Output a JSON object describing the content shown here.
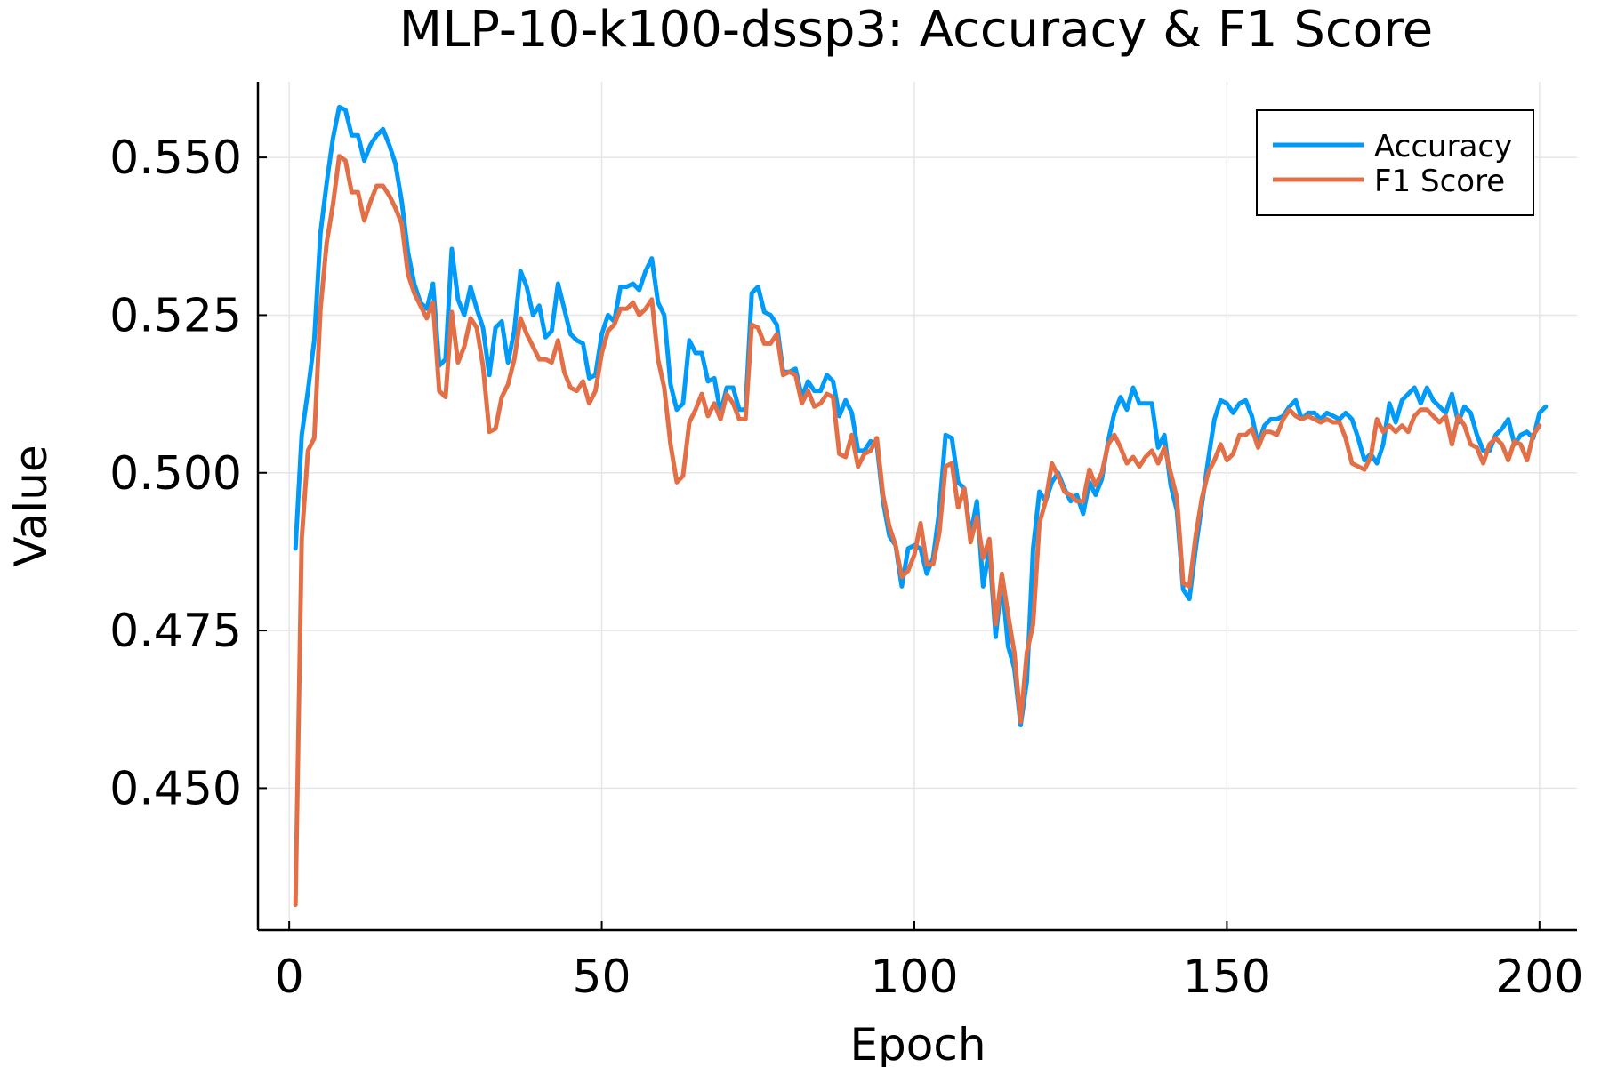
{
  "chart_data": {
    "type": "line",
    "title": "MLP-10-k100-dssp3: Accuracy & F1 Score",
    "xlabel": "Epoch",
    "ylabel": "Value",
    "xlim": [
      -5,
      206
    ],
    "ylim": [
      0.4275,
      0.562
    ],
    "xticks": [
      0,
      50,
      100,
      150,
      200
    ],
    "yticks": [
      0.45,
      0.475,
      0.5,
      0.525,
      0.55
    ],
    "xtick_labels": [
      "0",
      "50",
      "100",
      "150",
      "200"
    ],
    "ytick_labels": [
      "0.450",
      "0.475",
      "0.500",
      "0.525",
      "0.550"
    ],
    "grid": true,
    "legend_position": "top-right",
    "series": [
      {
        "name": "Accuracy",
        "color": "#009af9",
        "values": [
          0.488,
          0.506,
          0.513,
          0.521,
          0.538,
          0.546,
          0.553,
          0.558,
          0.5575,
          0.5535,
          0.5535,
          0.5495,
          0.552,
          0.5535,
          0.5545,
          0.552,
          0.549,
          0.543,
          0.535,
          0.53,
          0.527,
          0.526,
          0.53,
          0.517,
          0.518,
          0.5355,
          0.5275,
          0.525,
          0.5295,
          0.526,
          0.523,
          0.5155,
          0.523,
          0.524,
          0.5175,
          0.5225,
          0.532,
          0.5295,
          0.525,
          0.5265,
          0.5215,
          0.5225,
          0.53,
          0.526,
          0.522,
          0.521,
          0.5205,
          0.515,
          0.5155,
          0.522,
          0.525,
          0.524,
          0.5295,
          0.5295,
          0.53,
          0.529,
          0.532,
          0.534,
          0.527,
          0.525,
          0.514,
          0.51,
          0.511,
          0.521,
          0.519,
          0.519,
          0.5145,
          0.515,
          0.5095,
          0.5135,
          0.5135,
          0.51,
          0.51,
          0.5285,
          0.5295,
          0.5255,
          0.525,
          0.5235,
          0.516,
          0.516,
          0.5165,
          0.512,
          0.5145,
          0.513,
          0.513,
          0.5155,
          0.5145,
          0.509,
          0.5115,
          0.5095,
          0.5035,
          0.5035,
          0.505,
          0.5045,
          0.4955,
          0.49,
          0.4885,
          0.482,
          0.488,
          0.4885,
          0.488,
          0.484,
          0.4865,
          0.494,
          0.506,
          0.5055,
          0.4985,
          0.4975,
          0.49,
          0.4955,
          0.482,
          0.488,
          0.474,
          0.483,
          0.4725,
          0.469,
          0.46,
          0.467,
          0.488,
          0.497,
          0.4955,
          0.4985,
          0.5,
          0.4975,
          0.4955,
          0.4965,
          0.4935,
          0.4985,
          0.4965,
          0.499,
          0.505,
          0.5095,
          0.512,
          0.51,
          0.5135,
          0.511,
          0.511,
          0.511,
          0.504,
          0.506,
          0.498,
          0.494,
          0.4815,
          0.48,
          0.488,
          0.495,
          0.502,
          0.5085,
          0.5115,
          0.511,
          0.5095,
          0.511,
          0.5115,
          0.509,
          0.5045,
          0.5075,
          0.5085,
          0.5085,
          0.509,
          0.5105,
          0.5115,
          0.5085,
          0.5095,
          0.5095,
          0.5085,
          0.5095,
          0.509,
          0.5085,
          0.5095,
          0.5085,
          0.5055,
          0.502,
          0.503,
          0.5015,
          0.5045,
          0.511,
          0.508,
          0.5115,
          0.5125,
          0.5135,
          0.511,
          0.5135,
          0.5115,
          0.5105,
          0.5095,
          0.5125,
          0.508,
          0.5105,
          0.5095,
          0.506,
          0.5035,
          0.5035,
          0.506,
          0.507,
          0.5085,
          0.5045,
          0.506,
          0.5065,
          0.5055,
          0.5095,
          0.5105
        ]
      },
      {
        "name": "F1 Score",
        "color": "#e26f46",
        "values": [
          0.4315,
          0.4895,
          0.5035,
          0.5055,
          0.526,
          0.5365,
          0.5425,
          0.5502,
          0.5495,
          0.5445,
          0.5445,
          0.54,
          0.543,
          0.5455,
          0.5455,
          0.544,
          0.542,
          0.5395,
          0.5315,
          0.5285,
          0.5265,
          0.5245,
          0.527,
          0.513,
          0.512,
          0.5255,
          0.5175,
          0.52,
          0.5245,
          0.523,
          0.517,
          0.5065,
          0.507,
          0.512,
          0.514,
          0.518,
          0.5245,
          0.522,
          0.52,
          0.518,
          0.518,
          0.5175,
          0.521,
          0.516,
          0.5135,
          0.513,
          0.5145,
          0.511,
          0.513,
          0.519,
          0.5225,
          0.5235,
          0.526,
          0.526,
          0.527,
          0.525,
          0.526,
          0.5275,
          0.518,
          0.5135,
          0.5045,
          0.4985,
          0.4995,
          0.508,
          0.51,
          0.5125,
          0.509,
          0.511,
          0.5085,
          0.5125,
          0.511,
          0.5085,
          0.5085,
          0.5235,
          0.523,
          0.5205,
          0.5205,
          0.522,
          0.5155,
          0.516,
          0.5155,
          0.511,
          0.513,
          0.5105,
          0.511,
          0.5125,
          0.512,
          0.503,
          0.5025,
          0.506,
          0.501,
          0.503,
          0.5035,
          0.5055,
          0.4965,
          0.4915,
          0.4885,
          0.4835,
          0.4845,
          0.487,
          0.492,
          0.4855,
          0.4855,
          0.4905,
          0.501,
          0.5015,
          0.4945,
          0.4975,
          0.489,
          0.493,
          0.4865,
          0.4895,
          0.476,
          0.484,
          0.4775,
          0.4715,
          0.4605,
          0.4715,
          0.476,
          0.492,
          0.4955,
          0.5015,
          0.4995,
          0.497,
          0.4965,
          0.4955,
          0.4955,
          0.5005,
          0.498,
          0.5,
          0.5045,
          0.506,
          0.504,
          0.5015,
          0.5025,
          0.501,
          0.5025,
          0.5035,
          0.5015,
          0.504,
          0.5,
          0.496,
          0.4825,
          0.482,
          0.49,
          0.496,
          0.5,
          0.502,
          0.5045,
          0.502,
          0.503,
          0.506,
          0.506,
          0.507,
          0.504,
          0.5065,
          0.5065,
          0.506,
          0.5085,
          0.51,
          0.509,
          0.5085,
          0.509,
          0.5085,
          0.508,
          0.5085,
          0.508,
          0.508,
          0.5055,
          0.5015,
          0.501,
          0.5005,
          0.5025,
          0.5085,
          0.5065,
          0.5075,
          0.5065,
          0.5075,
          0.5065,
          0.509,
          0.51,
          0.51,
          0.509,
          0.508,
          0.509,
          0.5045,
          0.509,
          0.5075,
          0.5045,
          0.504,
          0.5015,
          0.5045,
          0.5055,
          0.5045,
          0.502,
          0.505,
          0.5045,
          0.502,
          0.506,
          0.5075
        ]
      }
    ]
  }
}
